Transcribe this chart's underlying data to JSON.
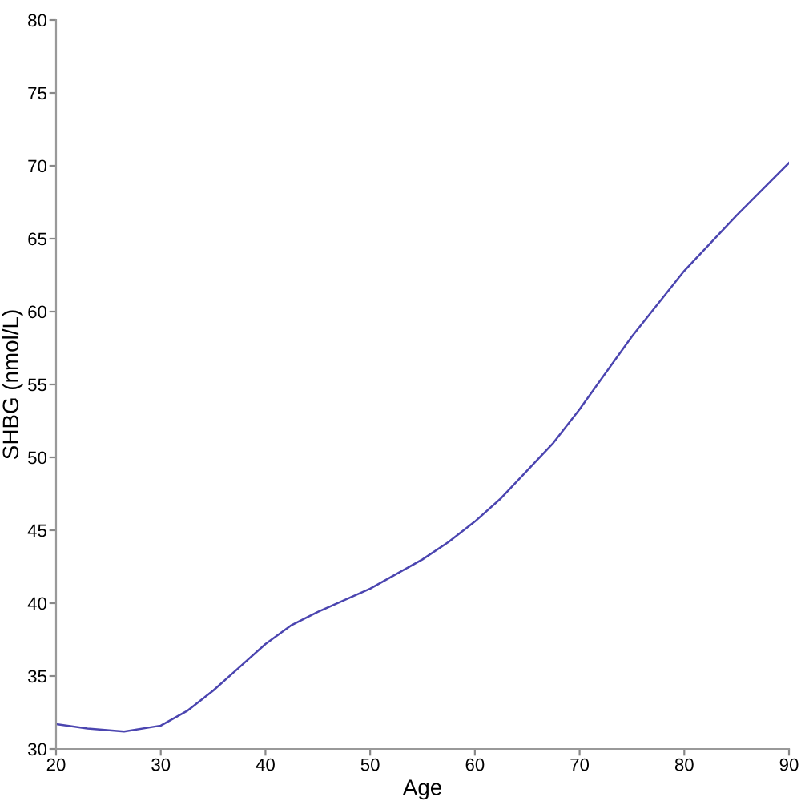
{
  "chart_data": {
    "type": "line",
    "xlabel": "Age",
    "ylabel": "SHBG (nmol/L)",
    "x": [
      20,
      23,
      26.5,
      30,
      32.5,
      35,
      37.5,
      40,
      42.5,
      45,
      47.5,
      50,
      52.5,
      55,
      57.5,
      60,
      62.5,
      65,
      67.5,
      70,
      75,
      80,
      85,
      90
    ],
    "series": [
      {
        "color": "#4b45b0",
        "values": [
          31.7,
          31.4,
          31.2,
          31.6,
          32.6,
          34.0,
          35.6,
          37.2,
          38.5,
          39.4,
          40.2,
          41.0,
          42.0,
          43.0,
          44.2,
          45.6,
          47.2,
          49.1,
          51.0,
          53.3,
          58.3,
          62.8,
          66.6,
          70.2
        ]
      }
    ],
    "xlim": [
      20,
      90
    ],
    "xticks": [
      20,
      30,
      40,
      50,
      60,
      70,
      80,
      90
    ],
    "ylim": [
      30,
      80
    ],
    "yticks": [
      30,
      35,
      40,
      45,
      50,
      55,
      60,
      65,
      70,
      75,
      80
    ],
    "grid": false,
    "marker": "none",
    "line_style": "solid"
  }
}
